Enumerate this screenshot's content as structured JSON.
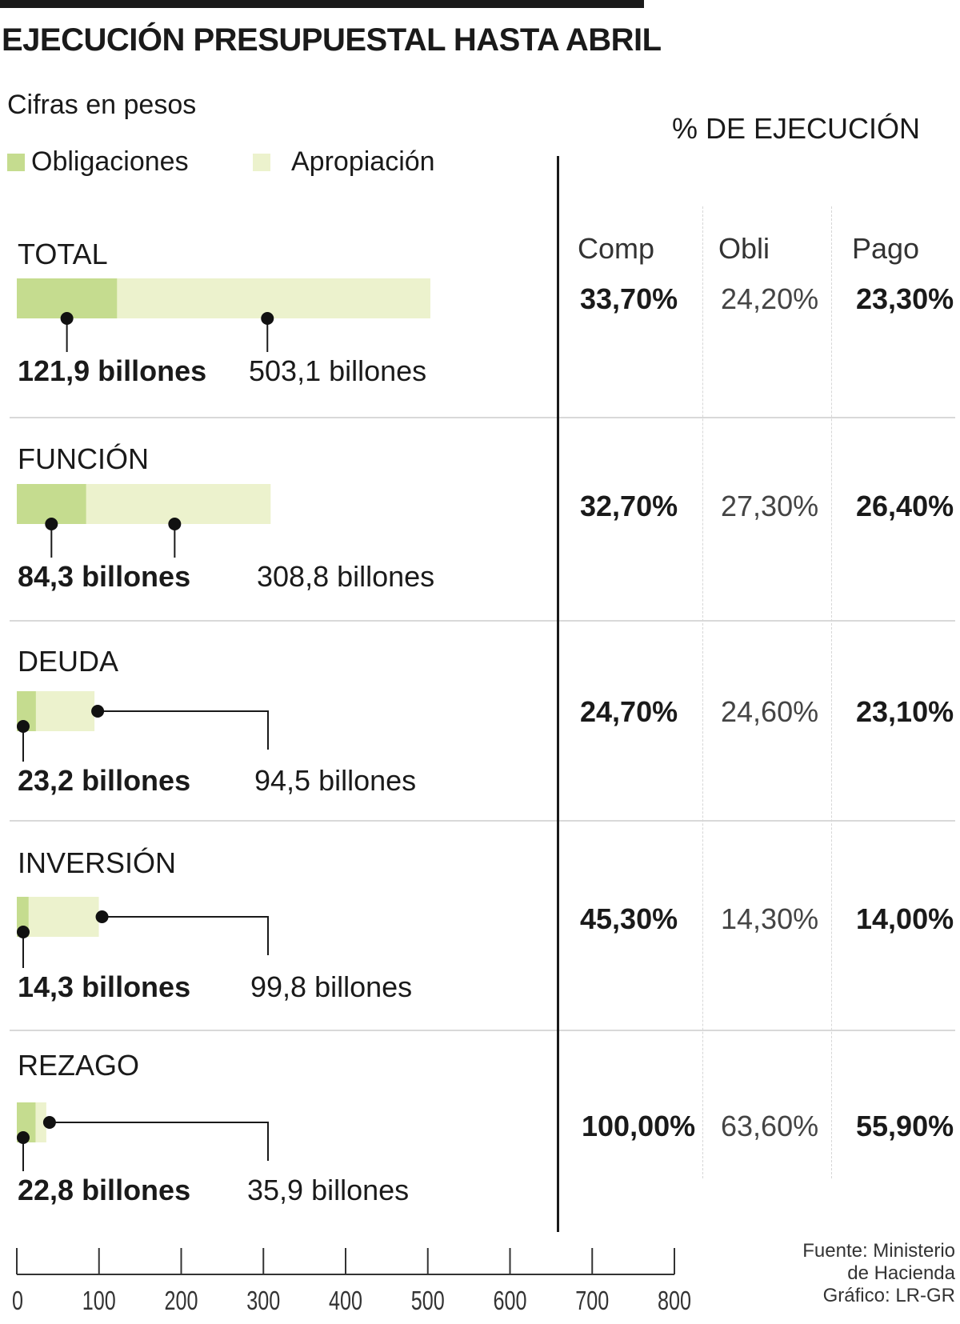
{
  "title": "EJECUCIÓN PRESUPUESTAL HASTA ABRIL",
  "subtitle": "Cifras en pesos",
  "legend": [
    {
      "label": "Obligaciones",
      "color": "#c5dc8f"
    },
    {
      "label": "Apropiación",
      "color": "#ecf2cd"
    }
  ],
  "pct_header": "% DE EJECUCIÓN",
  "pct_columns": [
    "Comp",
    "Obli",
    "Pago"
  ],
  "source": {
    "line1": "Fuente: Ministerio",
    "line2": "de Hacienda",
    "line3": "Gráfico: LR-GR"
  },
  "chart_data": {
    "type": "bar",
    "title": "EJECUCIÓN PRESUPUESTAL HASTA ABRIL",
    "unit": "billones de pesos",
    "xlim": [
      0,
      800
    ],
    "xticks": [
      0,
      100,
      200,
      300,
      400,
      500,
      600,
      700,
      800
    ],
    "categories": [
      "TOTAL",
      "FUNCIÓN",
      "DEUDA",
      "INVERSIÓN",
      "REZAGO"
    ],
    "series": [
      {
        "name": "Obligaciones",
        "values": [
          121.9,
          84.3,
          23.2,
          14.3,
          22.8
        ]
      },
      {
        "name": "Apropiación",
        "values": [
          503.1,
          308.8,
          94.5,
          99.8,
          35.9
        ]
      }
    ],
    "obligaciones_labels": [
      "121,9 billones",
      "84,3 billones",
      "23,2 billones",
      "14,3 billones",
      "22,8 billones"
    ],
    "apropiacion_labels": [
      "503,1 billones",
      "308,8 billones",
      "94,5 billones",
      "99,8 billones",
      "35,9 billones"
    ],
    "pct_ejecucion": {
      "Comp": [
        "33,70%",
        "32,70%",
        "24,70%",
        "45,30%",
        "100,00%"
      ],
      "Obli": [
        "24,20%",
        "27,30%",
        "24,60%",
        "14,30%",
        "63,60%"
      ],
      "Pago": [
        "23,30%",
        "26,40%",
        "23,10%",
        "14,00%",
        "55,90%"
      ]
    }
  }
}
